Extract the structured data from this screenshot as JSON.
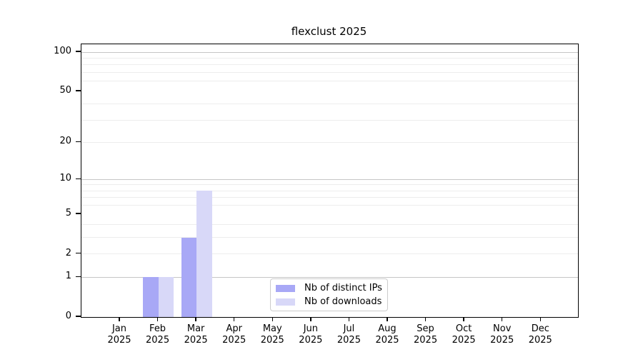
{
  "title": "flexclust 2025",
  "chart_data": {
    "type": "bar",
    "title": "flexclust 2025",
    "x_categories": [
      "Jan",
      "Feb",
      "Mar",
      "Apr",
      "May",
      "Jun",
      "Jul",
      "Aug",
      "Sep",
      "Oct",
      "Nov",
      "Dec"
    ],
    "x_year_label": "2025",
    "series": [
      {
        "name": "Nb of distinct IPs",
        "color": "#a8a8f6",
        "values": [
          0,
          1,
          3,
          0,
          0,
          0,
          0,
          0,
          0,
          0,
          0,
          0
        ]
      },
      {
        "name": "Nb of downloads",
        "color": "#d8d8f8",
        "values": [
          0,
          1,
          8,
          0,
          0,
          0,
          0,
          0,
          0,
          0,
          0,
          0
        ]
      }
    ],
    "y_ticks": [
      0,
      1,
      2,
      5,
      10,
      20,
      50,
      100
    ],
    "y_scale": "log1p",
    "ylim": [
      0,
      115
    ],
    "grid": {
      "major_values": [
        1,
        10,
        100
      ],
      "minor_values": [
        2,
        3,
        4,
        6,
        7,
        8,
        9,
        20,
        30,
        40,
        60,
        70,
        80,
        90
      ]
    },
    "legend_position": "lower center",
    "colors": {
      "grid_major": "#c6c6c6",
      "grid_minor": "#ededed",
      "axis": "#000000",
      "legend_border": "#cccccc",
      "text": "#000000"
    }
  }
}
